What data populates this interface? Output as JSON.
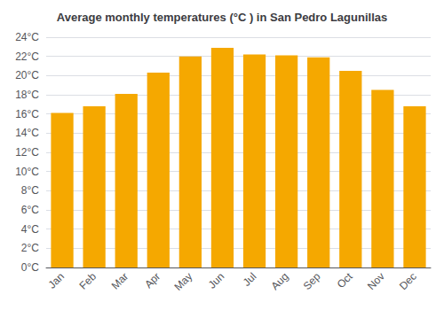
{
  "chart_data": {
    "type": "bar",
    "title": "Average monthly temperatures (°C ) in San Pedro Lagunillas",
    "categories": [
      "Jan",
      "Feb",
      "Mar",
      "Apr",
      "May",
      "Jun",
      "Jul",
      "Aug",
      "Sep",
      "Oct",
      "Nov",
      "Dec"
    ],
    "values": [
      16.1,
      16.8,
      18.1,
      20.3,
      22.0,
      22.9,
      22.2,
      22.1,
      21.9,
      20.5,
      18.5,
      16.8
    ],
    "color": "#F5A800",
    "ylim": [
      0,
      24
    ],
    "yticks": [
      {
        "value": 0,
        "label": "0°C"
      },
      {
        "value": 2,
        "label": "2°C"
      },
      {
        "value": 4,
        "label": "4°C"
      },
      {
        "value": 6,
        "label": "6°C"
      },
      {
        "value": 8,
        "label": "8°C"
      },
      {
        "value": 10,
        "label": "10°C"
      },
      {
        "value": 12,
        "label": "12°C"
      },
      {
        "value": 14,
        "label": "14°C"
      },
      {
        "value": 16,
        "label": "16°C"
      },
      {
        "value": 18,
        "label": "18°C"
      },
      {
        "value": 20,
        "label": "20°C"
      },
      {
        "value": 22,
        "label": "22°C"
      },
      {
        "value": 24,
        "label": "24°C"
      }
    ],
    "grid": true
  }
}
